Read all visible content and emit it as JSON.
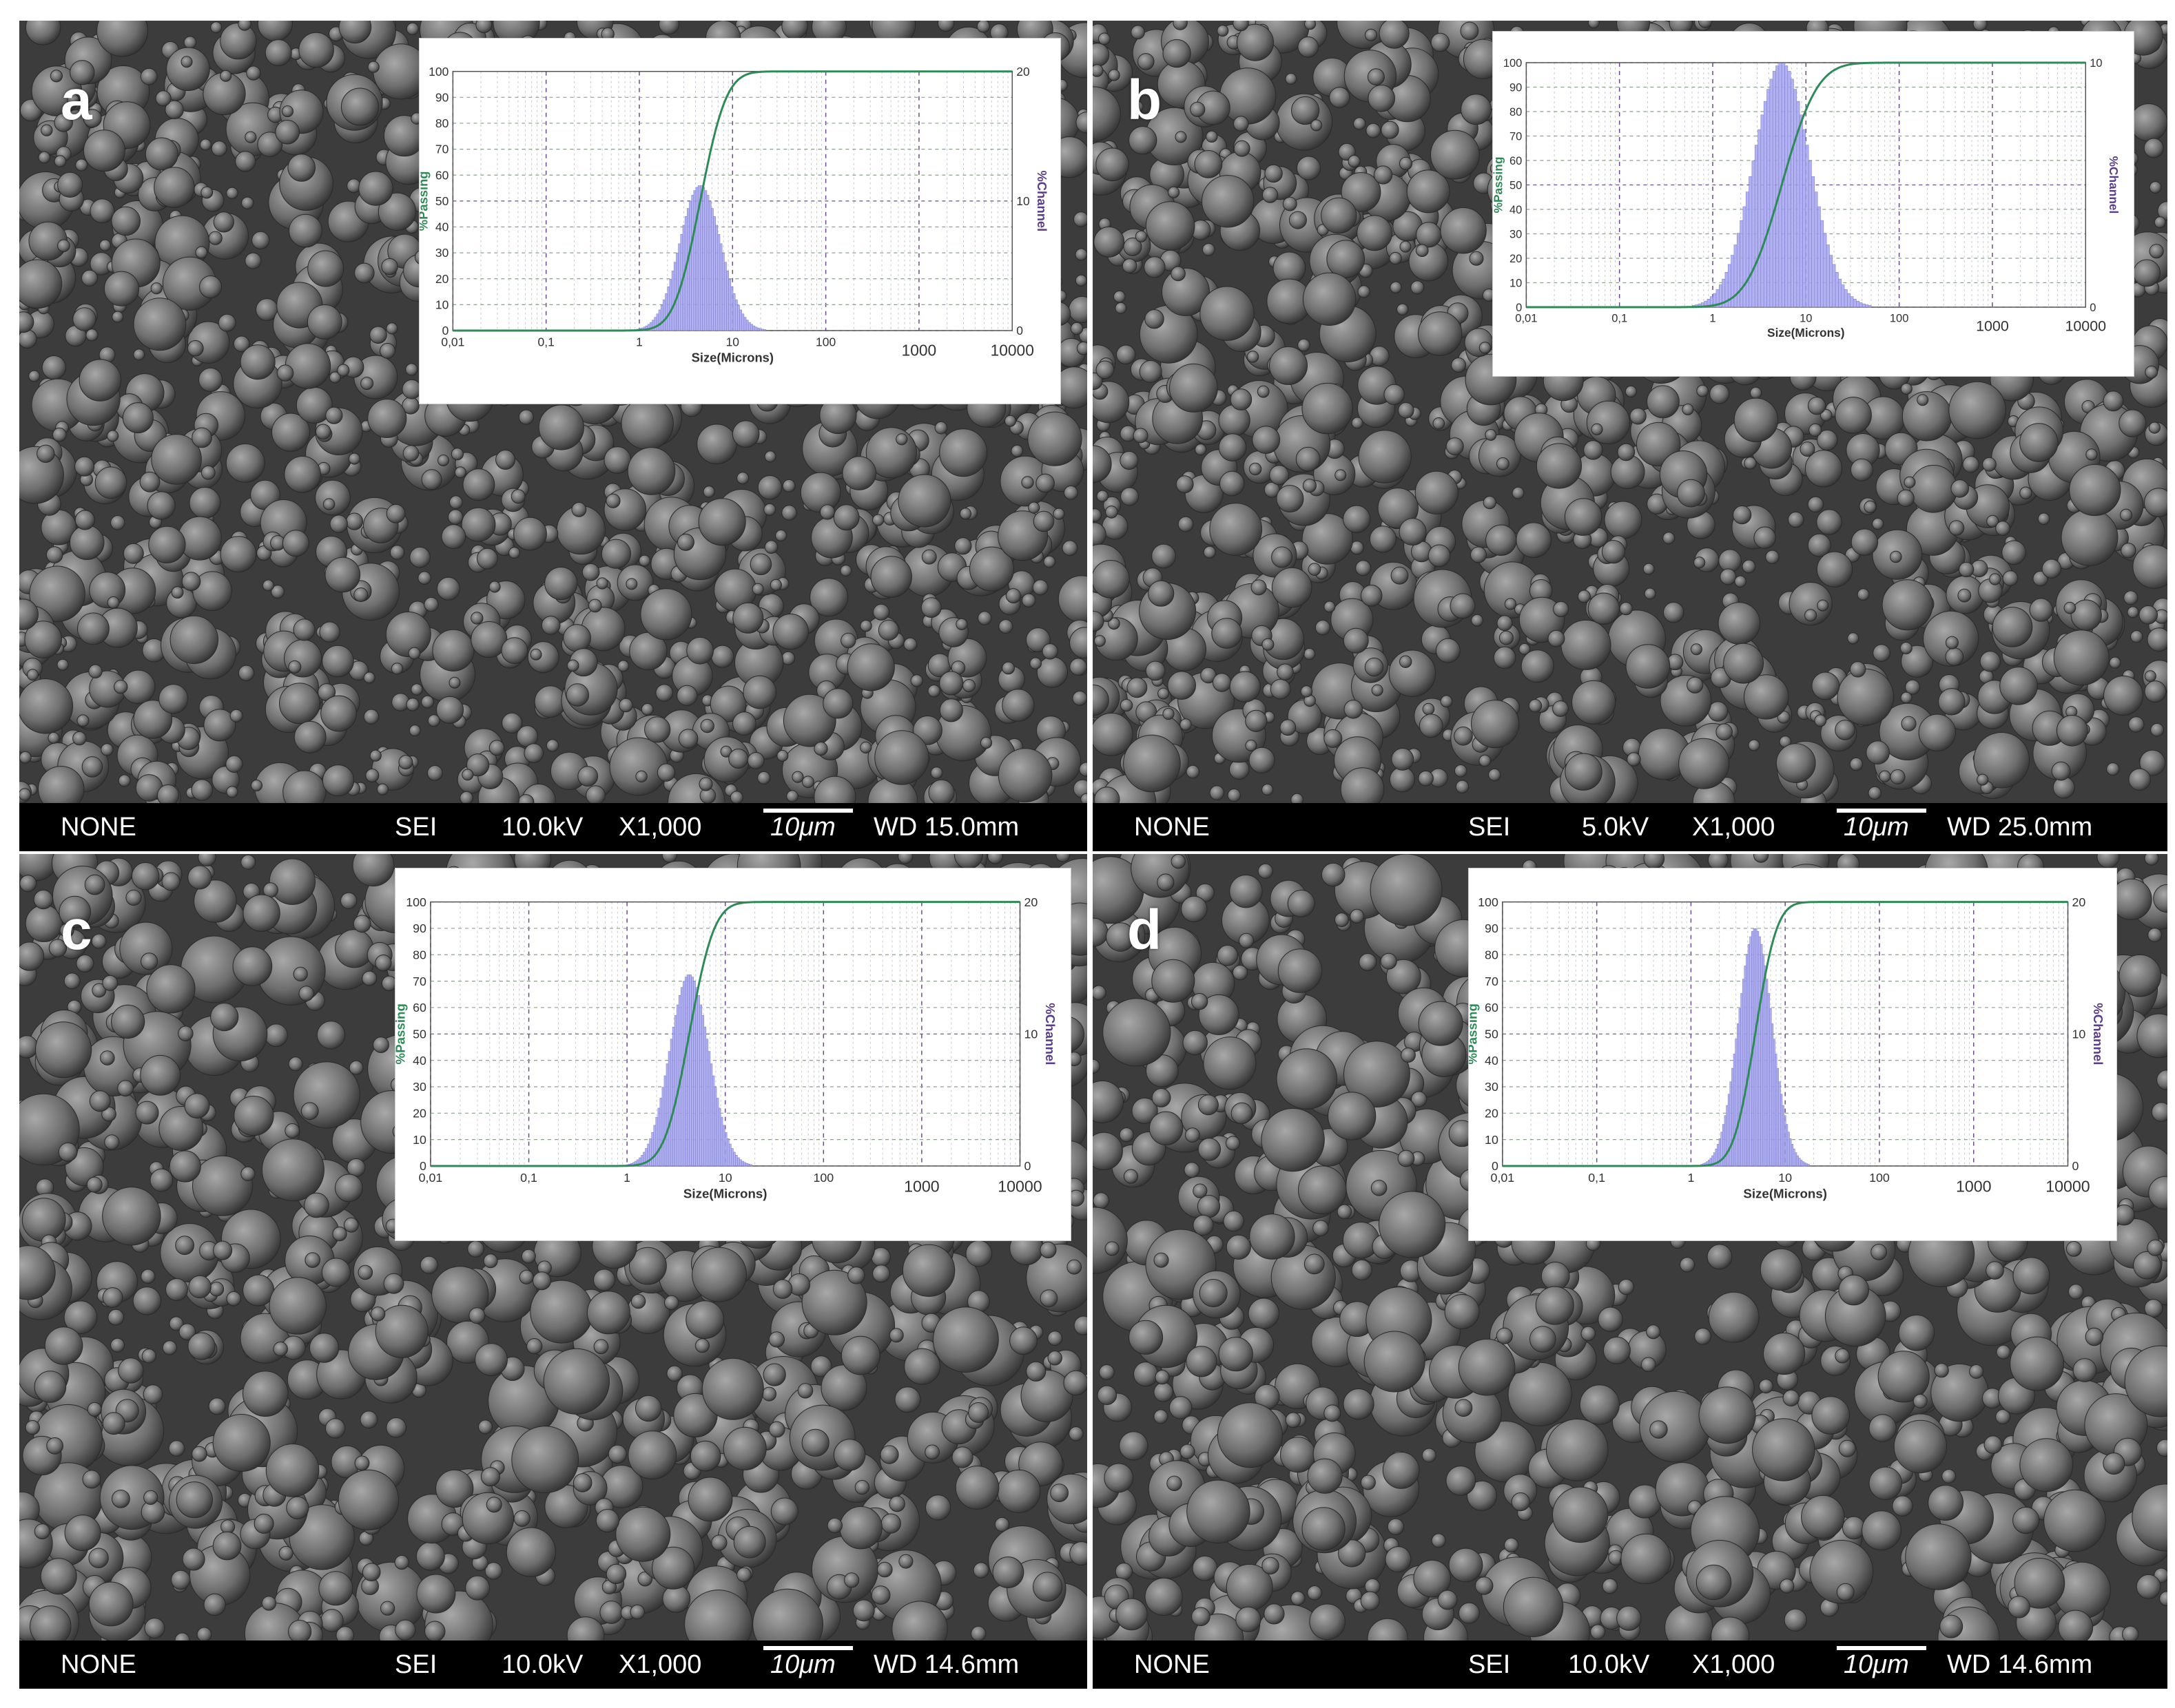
{
  "colors": {
    "passing_curve": "#2e8b57",
    "channel_bars": "#a4a4f0",
    "passing_label": "#2e8b57",
    "channel_label": "#5a3c8c",
    "info_bar": "#000000"
  },
  "panels": [
    {
      "letter": "a",
      "info": {
        "mode": "NONE",
        "detector": "SEI",
        "voltage": "10.0kV",
        "mag": "X1,000",
        "scale": "10μm",
        "wd": "WD 15.0mm"
      },
      "chart_data": {
        "type": "bar",
        "xlabel": "Size(Microns)",
        "ylabel_left": "%Passing",
        "ylabel_right": "%Channel",
        "xscale": "log",
        "xticks": [
          "0,01",
          "0,1",
          "1",
          "10",
          "100",
          "1000",
          "10000"
        ],
        "yticks_left": [
          "0",
          "10",
          "20",
          "30",
          "40",
          "50",
          "60",
          "70",
          "80",
          "90",
          "100"
        ],
        "yticks_right": [
          "0",
          "10",
          "20"
        ],
        "xlim": [
          0.01,
          10000
        ],
        "ylim_left": [
          0,
          100
        ],
        "ylim_right": [
          0,
          20
        ],
        "median_um": 4.5,
        "spread_log10": 0.22,
        "channel_peak": 11.2
      }
    },
    {
      "letter": "b",
      "info": {
        "mode": "NONE",
        "detector": "SEI",
        "voltage": "5.0kV",
        "mag": "X1,000",
        "scale": "10μm",
        "wd": "WD 25.0mm"
      },
      "chart_data": {
        "type": "bar",
        "xlabel": "Size(Microns)",
        "ylabel_left": "%Passing",
        "ylabel_right": "%Channel",
        "xscale": "log",
        "xticks": [
          "0,01",
          "0,1",
          "1",
          "10",
          "100",
          "1000",
          "10000"
        ],
        "yticks_left": [
          "0",
          "10",
          "20",
          "30",
          "40",
          "50",
          "60",
          "70",
          "80",
          "90",
          "100"
        ],
        "yticks_right": [
          "0",
          "10"
        ],
        "xlim": [
          0.01,
          10000
        ],
        "ylim_left": [
          0,
          100
        ],
        "ylim_right": [
          0,
          10
        ],
        "median_um": 5.5,
        "spread_log10": 0.3,
        "channel_peak": 10
      }
    },
    {
      "letter": "c",
      "info": {
        "mode": "NONE",
        "detector": "SEI",
        "voltage": "10.0kV",
        "mag": "X1,000",
        "scale": "10μm",
        "wd": "WD 14.6mm"
      },
      "chart_data": {
        "type": "bar",
        "xlabel": "Size(Microns)",
        "ylabel_left": "%Passing",
        "ylabel_right": "%Channel",
        "xscale": "log",
        "xticks": [
          "0,01",
          "0,1",
          "1",
          "10",
          "100",
          "1000",
          "10000"
        ],
        "yticks_left": [
          "0",
          "10",
          "20",
          "30",
          "40",
          "50",
          "60",
          "70",
          "80",
          "90",
          "100"
        ],
        "yticks_right": [
          "0",
          "10",
          "20"
        ],
        "xlim": [
          0.01,
          10000
        ],
        "ylim_left": [
          0,
          100
        ],
        "ylim_right": [
          0,
          20
        ],
        "median_um": 4.3,
        "spread_log10": 0.2,
        "channel_peak": 14.5
      }
    },
    {
      "letter": "d",
      "info": {
        "mode": "NONE",
        "detector": "SEI",
        "voltage": "10.0kV",
        "mag": "X1,000",
        "scale": "10μm",
        "wd": "WD 14.6mm"
      },
      "chart_data": {
        "type": "bar",
        "xlabel": "Size(Microns)",
        "ylabel_left": "%Passing",
        "ylabel_right": "%Channel",
        "xscale": "log",
        "xticks": [
          "0,01",
          "0,1",
          "1",
          "10",
          "100",
          "1000",
          "10000"
        ],
        "yticks_left": [
          "0",
          "10",
          "20",
          "30",
          "40",
          "50",
          "60",
          "70",
          "80",
          "90",
          "100"
        ],
        "yticks_right": [
          "0",
          "10",
          "20"
        ],
        "xlim": [
          0.01,
          10000
        ],
        "ylim_left": [
          0,
          100
        ],
        "ylim_right": [
          0,
          20
        ],
        "median_um": 4.8,
        "spread_log10": 0.18,
        "channel_peak": 18
      }
    }
  ]
}
